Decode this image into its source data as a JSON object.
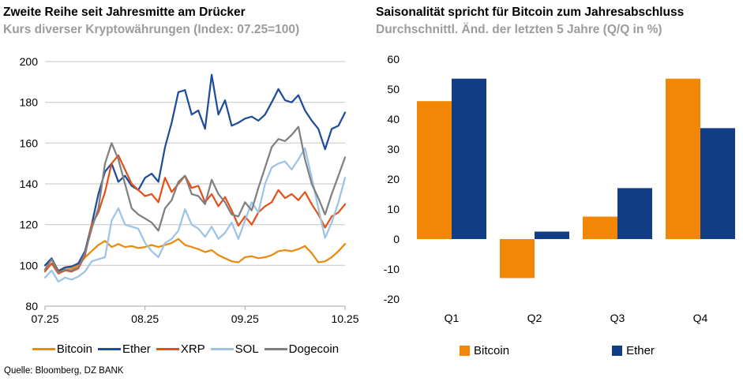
{
  "source": "Quelle: Bloomberg, DZ BANK",
  "chart_data": [
    {
      "type": "line",
      "title": "Zweite Reihe seit Jahresmitte am Drücker",
      "subtitle": "Kurs diverser Kryptowährungen (Index: 07.25=100)",
      "x_tick_labels": [
        "07.25",
        "08.25",
        "09.25",
        "10.25"
      ],
      "ylim": [
        80,
        200
      ],
      "y_ticks": [
        80,
        100,
        120,
        140,
        160,
        180,
        200
      ],
      "grid": "horizontal",
      "legend_position": "bottom",
      "series": [
        {
          "name": "Bitcoin",
          "color": "#EA8A10",
          "values": [
            100,
            103,
            97.5,
            99,
            98.5,
            100,
            104,
            107,
            110,
            112,
            109,
            110.5,
            109,
            109.5,
            108.5,
            109,
            110,
            109,
            110,
            111,
            113,
            110,
            109,
            108,
            106.5,
            107.5,
            105,
            103.5,
            102,
            101.5,
            104,
            104.5,
            103.5,
            104,
            105,
            107,
            107.5,
            107,
            108,
            109.5,
            106,
            101.5,
            102,
            104,
            107,
            110.5
          ]
        },
        {
          "name": "Ether",
          "color": "#1F4D9B",
          "values": [
            100,
            103.5,
            97,
            99,
            99.5,
            101,
            107,
            120,
            135,
            146,
            150,
            141,
            144,
            139,
            137,
            143,
            145,
            141,
            158,
            170,
            185,
            186,
            174,
            176,
            167,
            193.5,
            174,
            181,
            168.5,
            170,
            172,
            173,
            171,
            174,
            180,
            186.5,
            181,
            180,
            183.5,
            176,
            171,
            167,
            157,
            167,
            168.5,
            175
          ]
        },
        {
          "name": "XRP",
          "color": "#E3521B",
          "values": [
            97,
            101,
            96,
            97.5,
            97,
            98.5,
            105,
            120,
            126,
            136,
            150,
            154,
            147,
            140,
            137,
            134,
            135,
            131,
            143,
            136,
            140,
            144,
            138,
            139,
            131,
            135,
            129,
            133.5,
            127,
            119.5,
            124,
            120,
            126,
            129,
            131,
            137,
            133,
            135,
            132,
            136,
            130,
            125,
            118.5,
            124,
            126,
            130
          ]
        },
        {
          "name": "SOL",
          "color": "#9DC3E6",
          "values": [
            94,
            97.5,
            92,
            94,
            93,
            94.5,
            97,
            102,
            103,
            104,
            122,
            128,
            120,
            119,
            118,
            111,
            107,
            104,
            111,
            113,
            117,
            127.5,
            120,
            118,
            114,
            119,
            113,
            116,
            121,
            113,
            122,
            131,
            126,
            140,
            148,
            150,
            151,
            147,
            152,
            157.5,
            143,
            128,
            113.5,
            121,
            131,
            143
          ]
        },
        {
          "name": "Dogecoin",
          "color": "#808080",
          "values": [
            98,
            103,
            96.5,
            98,
            97.5,
            99,
            106,
            118,
            128,
            150,
            160,
            152,
            140,
            128,
            125,
            123,
            121,
            117,
            128,
            132,
            141,
            144,
            135,
            134,
            130,
            142,
            135,
            131,
            125,
            124,
            131,
            127,
            138,
            148,
            158,
            162,
            161,
            164,
            168,
            152,
            140,
            133,
            125,
            135,
            144,
            153
          ]
        }
      ]
    },
    {
      "type": "bar",
      "title": "Saisonalität spricht für Bitcoin zum Jahresabschluss",
      "subtitle": "Durchschnittl. Änd. der letzten 5 Jahre (Q/Q in %)",
      "categories": [
        "Q1",
        "Q2",
        "Q3",
        "Q4"
      ],
      "ylim": [
        -20,
        60
      ],
      "y_ticks": [
        60,
        50,
        40,
        30,
        20,
        10,
        0,
        -10,
        -20
      ],
      "grid": false,
      "legend_position": "bottom",
      "series": [
        {
          "name": "Bitcoin",
          "color": "#F28705",
          "values": [
            46,
            -13,
            7.5,
            53.5
          ]
        },
        {
          "name": "Ether",
          "color": "#113D85",
          "values": [
            53.5,
            2.5,
            17,
            37
          ]
        }
      ]
    }
  ]
}
